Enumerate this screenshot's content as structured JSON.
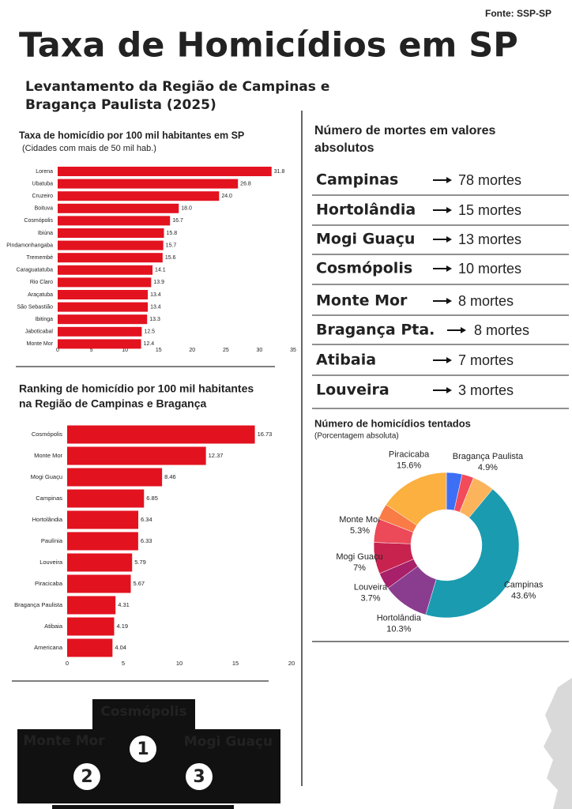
{
  "header": {
    "source": "Fonte: SSP-SP",
    "title": "Taxa de Homicídios em SP",
    "subtitle_lines": [
      "Levantamento da Região de Campinas e",
      "Bragança Paulista (2025)"
    ]
  },
  "chart_data": [
    {
      "type": "bar",
      "orientation": "horizontal",
      "title": "Taxa de homicídio por 100 mil habitantes em SP",
      "subtitle": "(Cidades com mais de 50 mil hab.)",
      "categories": [
        "Lorena",
        "Ubatuba",
        "Cruzeiro",
        "Boituva",
        "Cosmópolis",
        "Ibiúna",
        "Pindamonhangaba",
        "Tremembé",
        "Caraguatatuba",
        "Rio Claro",
        "Araçatuba",
        "São Sebastião",
        "Ibitinga",
        "Jaboticabal",
        "Monte Mor"
      ],
      "values": [
        31.8,
        26.8,
        24.0,
        18.0,
        16.7,
        15.8,
        15.7,
        15.6,
        14.1,
        13.9,
        13.4,
        13.4,
        13.3,
        12.5,
        12.4
      ],
      "value_labels": [
        "31.8",
        "26.8",
        "24.0",
        "18.0",
        "16.7",
        "15.8",
        "15.7",
        "15.6",
        "14.1",
        "13.9",
        "13.4",
        "13.4",
        "13.3",
        "12.5",
        "12.4"
      ],
      "color": "#e3121f",
      "xlim": [
        0,
        35
      ],
      "xticks": [
        0,
        5,
        10,
        15,
        20,
        25,
        30,
        35
      ]
    },
    {
      "type": "bar",
      "orientation": "horizontal",
      "title_lines": [
        "Ranking de homicídio por 100 mil habitantes",
        "na Região de Campinas e Bragança"
      ],
      "categories": [
        "Cosmópolis",
        "Monte Mor",
        "Mogi Guaçu",
        "Campinas",
        "Hortolândia",
        "Paulínia",
        "Louveira",
        "Piracicaba",
        "Bragança Paulista",
        "Atibaia",
        "Americana"
      ],
      "values": [
        16.73,
        12.37,
        8.46,
        6.85,
        6.34,
        6.33,
        5.79,
        5.67,
        4.31,
        4.19,
        4.04
      ],
      "color": "#e3121f",
      "xlim": [
        0,
        20
      ],
      "xticks": [
        0,
        5,
        10,
        15,
        20
      ]
    },
    {
      "type": "donut",
      "title": "Número de homicídios tentados",
      "subtitle": "(Porcentagem absoluta)",
      "categories": [
        null,
        null,
        "Bragança Paulista",
        "Campinas",
        "Hortolândia",
        "Louveira",
        "Mogi Guaçu",
        "Monte Mor",
        null,
        "Piracicaba"
      ],
      "values": [
        3.5,
        2.6,
        4.9,
        43.6,
        10.3,
        3.7,
        7,
        5.3,
        3.5,
        15.6
      ],
      "value_labels": [
        null,
        null,
        "4.9%",
        "43.6%",
        "10.3%",
        "3.7%",
        "7%",
        "5.3%",
        null,
        "15.6%"
      ],
      "colors": [
        "#3d6ff5",
        "#f24b5a",
        "#fbb45c",
        "#1a9bb0",
        "#8a3d8f",
        "#a8206a",
        "#c8234f",
        "#ec4a58",
        "#f97b45",
        "#fbb040"
      ]
    }
  ],
  "deaths": {
    "title_lines": [
      "Número de mortes em valores",
      "absolutos"
    ],
    "rows": [
      {
        "city": "Campinas",
        "count": "78 mortes"
      },
      {
        "city": "Hortolândia",
        "count": "15 mortes"
      },
      {
        "city": "Mogi Guaçu",
        "count": "13 mortes"
      },
      {
        "city": "Cosmópolis",
        "count": "10 mortes"
      },
      {
        "city": "Monte Mor",
        "count": "8 mortes"
      },
      {
        "city": "Bragança Pta.",
        "count": "8 mortes"
      },
      {
        "city": "Atibaia",
        "count": "7 mortes"
      },
      {
        "city": "Louveira",
        "count": "3 mortes"
      }
    ]
  },
  "podium": [
    {
      "city": "Cosmópolis",
      "place": "1"
    },
    {
      "city": "Monte Mor",
      "place": "2"
    },
    {
      "city": "Mogi Guaçu",
      "place": "3"
    }
  ]
}
